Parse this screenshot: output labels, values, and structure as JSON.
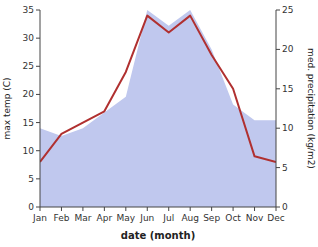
{
  "chart_data": {
    "type": "line",
    "categories": [
      "Jan",
      "Feb",
      "Mar",
      "Apr",
      "May",
      "Jun",
      "Jul",
      "Aug",
      "Sep",
      "Oct",
      "Nov",
      "Dec"
    ],
    "series": [
      {
        "type": "area",
        "axis": "y2",
        "color": "#c0c8ee",
        "values": [
          10,
          9,
          10,
          12,
          14,
          25,
          23,
          25,
          20,
          13,
          11,
          11
        ]
      },
      {
        "type": "line",
        "color": "#b03030",
        "values": [
          8,
          13,
          15,
          17,
          24,
          34,
          31,
          34,
          27,
          21,
          9,
          8
        ]
      }
    ],
    "xlabel": "date (month)",
    "ylabel": "max temp (C)",
    "y2label": "med. precipitation (kg/m2)",
    "ylim": [
      0,
      35
    ],
    "yticks": [
      0,
      5,
      10,
      15,
      20,
      25,
      30,
      35
    ],
    "y2lim": [
      0,
      25
    ],
    "y2ticks": [
      0,
      5,
      10,
      15,
      20,
      25
    ],
    "grid": false
  }
}
